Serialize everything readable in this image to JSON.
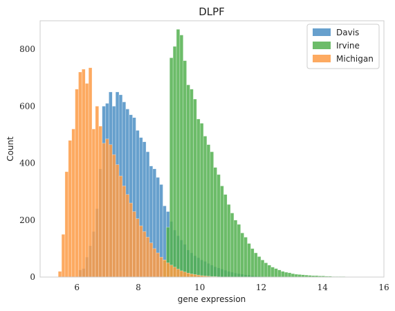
{
  "chart_data": {
    "type": "bar",
    "title": "DLPF",
    "xlabel": "gene expression",
    "ylabel": "Count",
    "xlim": [
      4.8,
      16
    ],
    "ylim": [
      0,
      900
    ],
    "xticks": [
      6,
      8,
      10,
      12,
      14,
      16
    ],
    "yticks": [
      0,
      200,
      400,
      600,
      800
    ],
    "grid": false,
    "legend_position": "top-right",
    "bin_width": 0.11,
    "series": [
      {
        "name": "Davis",
        "color": "#4c8fc4",
        "bins": [
          [
            6.05,
            25
          ],
          [
            6.16,
            30
          ],
          [
            6.27,
            70
          ],
          [
            6.38,
            110
          ],
          [
            6.49,
            160
          ],
          [
            6.6,
            240
          ],
          [
            6.71,
            380
          ],
          [
            6.82,
            600
          ],
          [
            6.93,
            610
          ],
          [
            7.04,
            650
          ],
          [
            7.15,
            600
          ],
          [
            7.26,
            650
          ],
          [
            7.37,
            640
          ],
          [
            7.48,
            615
          ],
          [
            7.59,
            590
          ],
          [
            7.7,
            570
          ],
          [
            7.81,
            560
          ],
          [
            7.92,
            515
          ],
          [
            8.03,
            490
          ],
          [
            8.14,
            475
          ],
          [
            8.25,
            440
          ],
          [
            8.36,
            390
          ],
          [
            8.47,
            380
          ],
          [
            8.58,
            350
          ],
          [
            8.69,
            325
          ],
          [
            8.8,
            250
          ],
          [
            8.91,
            230
          ],
          [
            9.02,
            195
          ],
          [
            9.13,
            165
          ],
          [
            9.24,
            145
          ],
          [
            9.35,
            130
          ],
          [
            9.46,
            115
          ],
          [
            9.57,
            95
          ],
          [
            9.68,
            85
          ],
          [
            9.79,
            75
          ],
          [
            9.9,
            68
          ],
          [
            10.01,
            60
          ],
          [
            10.12,
            55
          ],
          [
            10.23,
            48
          ],
          [
            10.34,
            42
          ],
          [
            10.45,
            36
          ],
          [
            10.56,
            32
          ],
          [
            10.67,
            28
          ],
          [
            10.78,
            24
          ],
          [
            10.89,
            20
          ],
          [
            11.0,
            17
          ],
          [
            11.11,
            14
          ],
          [
            11.22,
            12
          ],
          [
            11.33,
            10
          ],
          [
            11.44,
            8
          ],
          [
            11.55,
            7
          ],
          [
            11.66,
            5
          ],
          [
            11.77,
            4
          ],
          [
            11.88,
            3
          ],
          [
            11.99,
            2
          ]
        ]
      },
      {
        "name": "Irvine",
        "color": "#52b04f",
        "bins": [
          [
            8.8,
            60
          ],
          [
            8.91,
            175
          ],
          [
            9.02,
            770
          ],
          [
            9.13,
            810
          ],
          [
            9.24,
            870
          ],
          [
            9.35,
            850
          ],
          [
            9.46,
            760
          ],
          [
            9.57,
            675
          ],
          [
            9.68,
            660
          ],
          [
            9.79,
            625
          ],
          [
            9.9,
            555
          ],
          [
            10.01,
            540
          ],
          [
            10.12,
            495
          ],
          [
            10.23,
            465
          ],
          [
            10.34,
            440
          ],
          [
            10.45,
            385
          ],
          [
            10.56,
            360
          ],
          [
            10.67,
            320
          ],
          [
            10.78,
            290
          ],
          [
            10.89,
            255
          ],
          [
            11.0,
            225
          ],
          [
            11.11,
            200
          ],
          [
            11.22,
            185
          ],
          [
            11.33,
            155
          ],
          [
            11.44,
            140
          ],
          [
            11.55,
            118
          ],
          [
            11.66,
            100
          ],
          [
            11.77,
            85
          ],
          [
            11.88,
            72
          ],
          [
            11.99,
            60
          ],
          [
            12.1,
            50
          ],
          [
            12.21,
            42
          ],
          [
            12.32,
            35
          ],
          [
            12.43,
            30
          ],
          [
            12.54,
            25
          ],
          [
            12.65,
            20
          ],
          [
            12.76,
            17
          ],
          [
            12.87,
            15
          ],
          [
            12.98,
            12
          ],
          [
            13.09,
            10
          ],
          [
            13.2,
            9
          ],
          [
            13.31,
            8
          ],
          [
            13.42,
            7
          ],
          [
            13.53,
            6
          ],
          [
            13.64,
            5
          ],
          [
            13.75,
            5
          ],
          [
            13.86,
            4
          ],
          [
            13.97,
            4
          ],
          [
            14.08,
            3
          ],
          [
            14.19,
            3
          ],
          [
            14.3,
            2
          ],
          [
            14.41,
            2
          ],
          [
            14.52,
            2
          ],
          [
            14.63,
            2
          ],
          [
            14.74,
            1
          ],
          [
            14.85,
            1
          ],
          [
            14.96,
            1
          ],
          [
            15.07,
            1
          ],
          [
            15.18,
            1
          ]
        ]
      },
      {
        "name": "Michigan",
        "color": "#fd9b45",
        "bins": [
          [
            5.39,
            20
          ],
          [
            5.5,
            150
          ],
          [
            5.61,
            370
          ],
          [
            5.72,
            480
          ],
          [
            5.83,
            520
          ],
          [
            5.94,
            660
          ],
          [
            6.05,
            720
          ],
          [
            6.16,
            730
          ],
          [
            6.27,
            680
          ],
          [
            6.38,
            735
          ],
          [
            6.49,
            520
          ],
          [
            6.6,
            600
          ],
          [
            6.71,
            530
          ],
          [
            6.82,
            470
          ],
          [
            6.93,
            485
          ],
          [
            7.04,
            465
          ],
          [
            7.15,
            430
          ],
          [
            7.26,
            395
          ],
          [
            7.37,
            355
          ],
          [
            7.48,
            320
          ],
          [
            7.59,
            290
          ],
          [
            7.7,
            260
          ],
          [
            7.81,
            230
          ],
          [
            7.92,
            205
          ],
          [
            8.03,
            180
          ],
          [
            8.14,
            160
          ],
          [
            8.25,
            140
          ],
          [
            8.36,
            120
          ],
          [
            8.47,
            100
          ],
          [
            8.58,
            85
          ],
          [
            8.69,
            70
          ],
          [
            8.8,
            60
          ],
          [
            8.91,
            50
          ],
          [
            9.02,
            42
          ],
          [
            9.13,
            35
          ],
          [
            9.24,
            28
          ],
          [
            9.35,
            22
          ],
          [
            9.46,
            18
          ],
          [
            9.57,
            14
          ],
          [
            9.68,
            11
          ],
          [
            9.79,
            9
          ],
          [
            9.9,
            7
          ],
          [
            10.01,
            5
          ],
          [
            10.12,
            4
          ],
          [
            10.23,
            3
          ],
          [
            10.34,
            2
          ],
          [
            10.45,
            2
          ],
          [
            10.56,
            1
          ]
        ]
      }
    ]
  }
}
